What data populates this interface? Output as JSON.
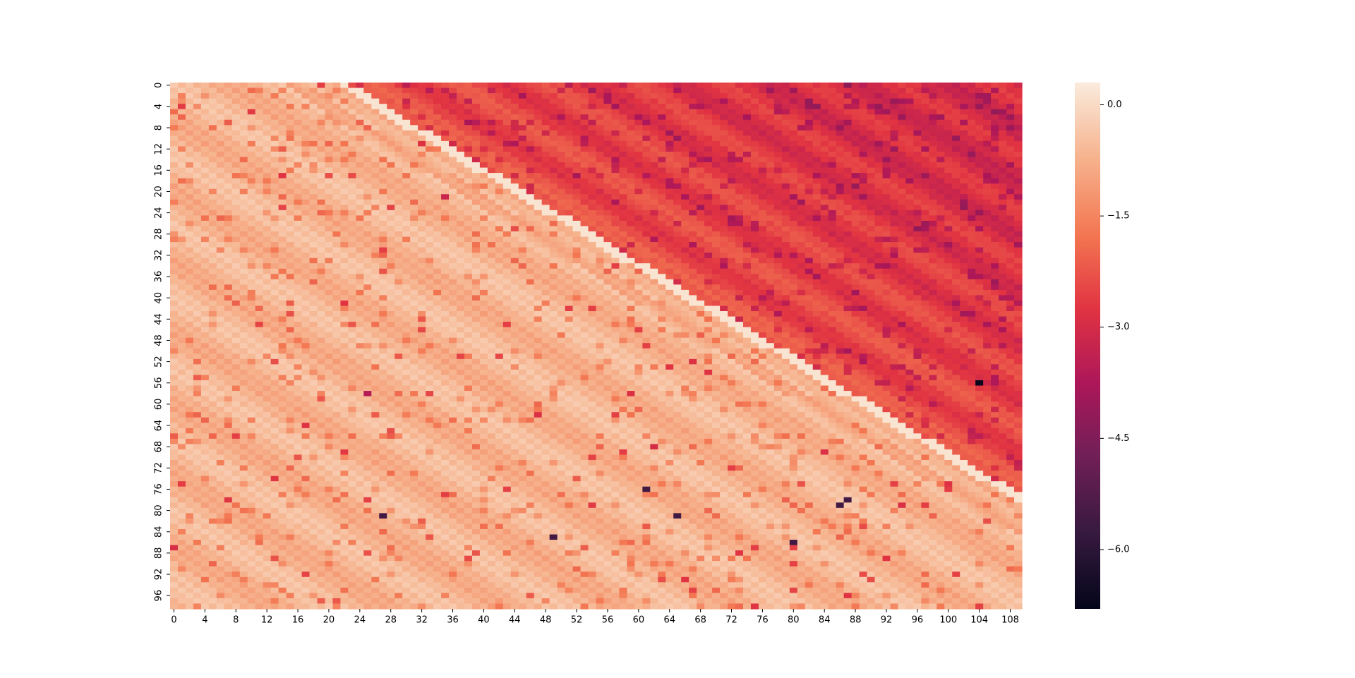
{
  "chart_data": {
    "type": "heatmap",
    "title": "",
    "xlabel": "",
    "ylabel": "",
    "n_rows": 99,
    "n_cols": 110,
    "x_ticks": [
      "0",
      "4",
      "8",
      "12",
      "16",
      "20",
      "24",
      "28",
      "32",
      "36",
      "40",
      "44",
      "48",
      "52",
      "56",
      "60",
      "64",
      "68",
      "72",
      "76",
      "80",
      "84",
      "88",
      "92",
      "96",
      "100",
      "104",
      "108"
    ],
    "y_ticks": [
      "0",
      "4",
      "8",
      "12",
      "16",
      "20",
      "24",
      "28",
      "32",
      "36",
      "40",
      "44",
      "48",
      "52",
      "56",
      "60",
      "64",
      "68",
      "72",
      "76",
      "80",
      "84",
      "88",
      "92",
      "96"
    ],
    "x_tick_values": [
      0,
      4,
      8,
      12,
      16,
      20,
      24,
      28,
      32,
      36,
      40,
      44,
      48,
      52,
      56,
      60,
      64,
      68,
      72,
      76,
      80,
      84,
      88,
      92,
      96,
      100,
      104,
      108
    ],
    "y_tick_values": [
      0,
      4,
      8,
      12,
      16,
      20,
      24,
      28,
      32,
      36,
      40,
      44,
      48,
      52,
      56,
      60,
      64,
      68,
      72,
      76,
      80,
      84,
      88,
      92,
      96
    ],
    "colorbar": {
      "vmin": -6.8,
      "vmax": 0.3,
      "ticks": [
        0.0,
        -1.5,
        -3.0,
        -4.5,
        -6.0
      ],
      "tick_labels": [
        "0.0",
        "−1.5",
        "−3.0",
        "−4.5",
        "−6.0"
      ],
      "colormap": "rocket",
      "stops": [
        "#03051a",
        "#35193e",
        "#701f57",
        "#ad1759",
        "#e13342",
        "#f37651",
        "#f6b48f",
        "#faebdd"
      ]
    },
    "value_estimates": {
      "upper_left_band_typical": -0.6,
      "lower_right_band_typical": -2.7,
      "boundary_diagonal_highest": 0.2,
      "minimum_outlier": -6.7,
      "minimum_outlier_cell_row_col": [
        56,
        104
      ],
      "dark_outlier_cells": [
        [
          81,
          27
        ],
        [
          76,
          61
        ],
        [
          85,
          49
        ],
        [
          81,
          65
        ],
        [
          78,
          87
        ],
        [
          79,
          86
        ],
        [
          86,
          80
        ]
      ]
    }
  }
}
